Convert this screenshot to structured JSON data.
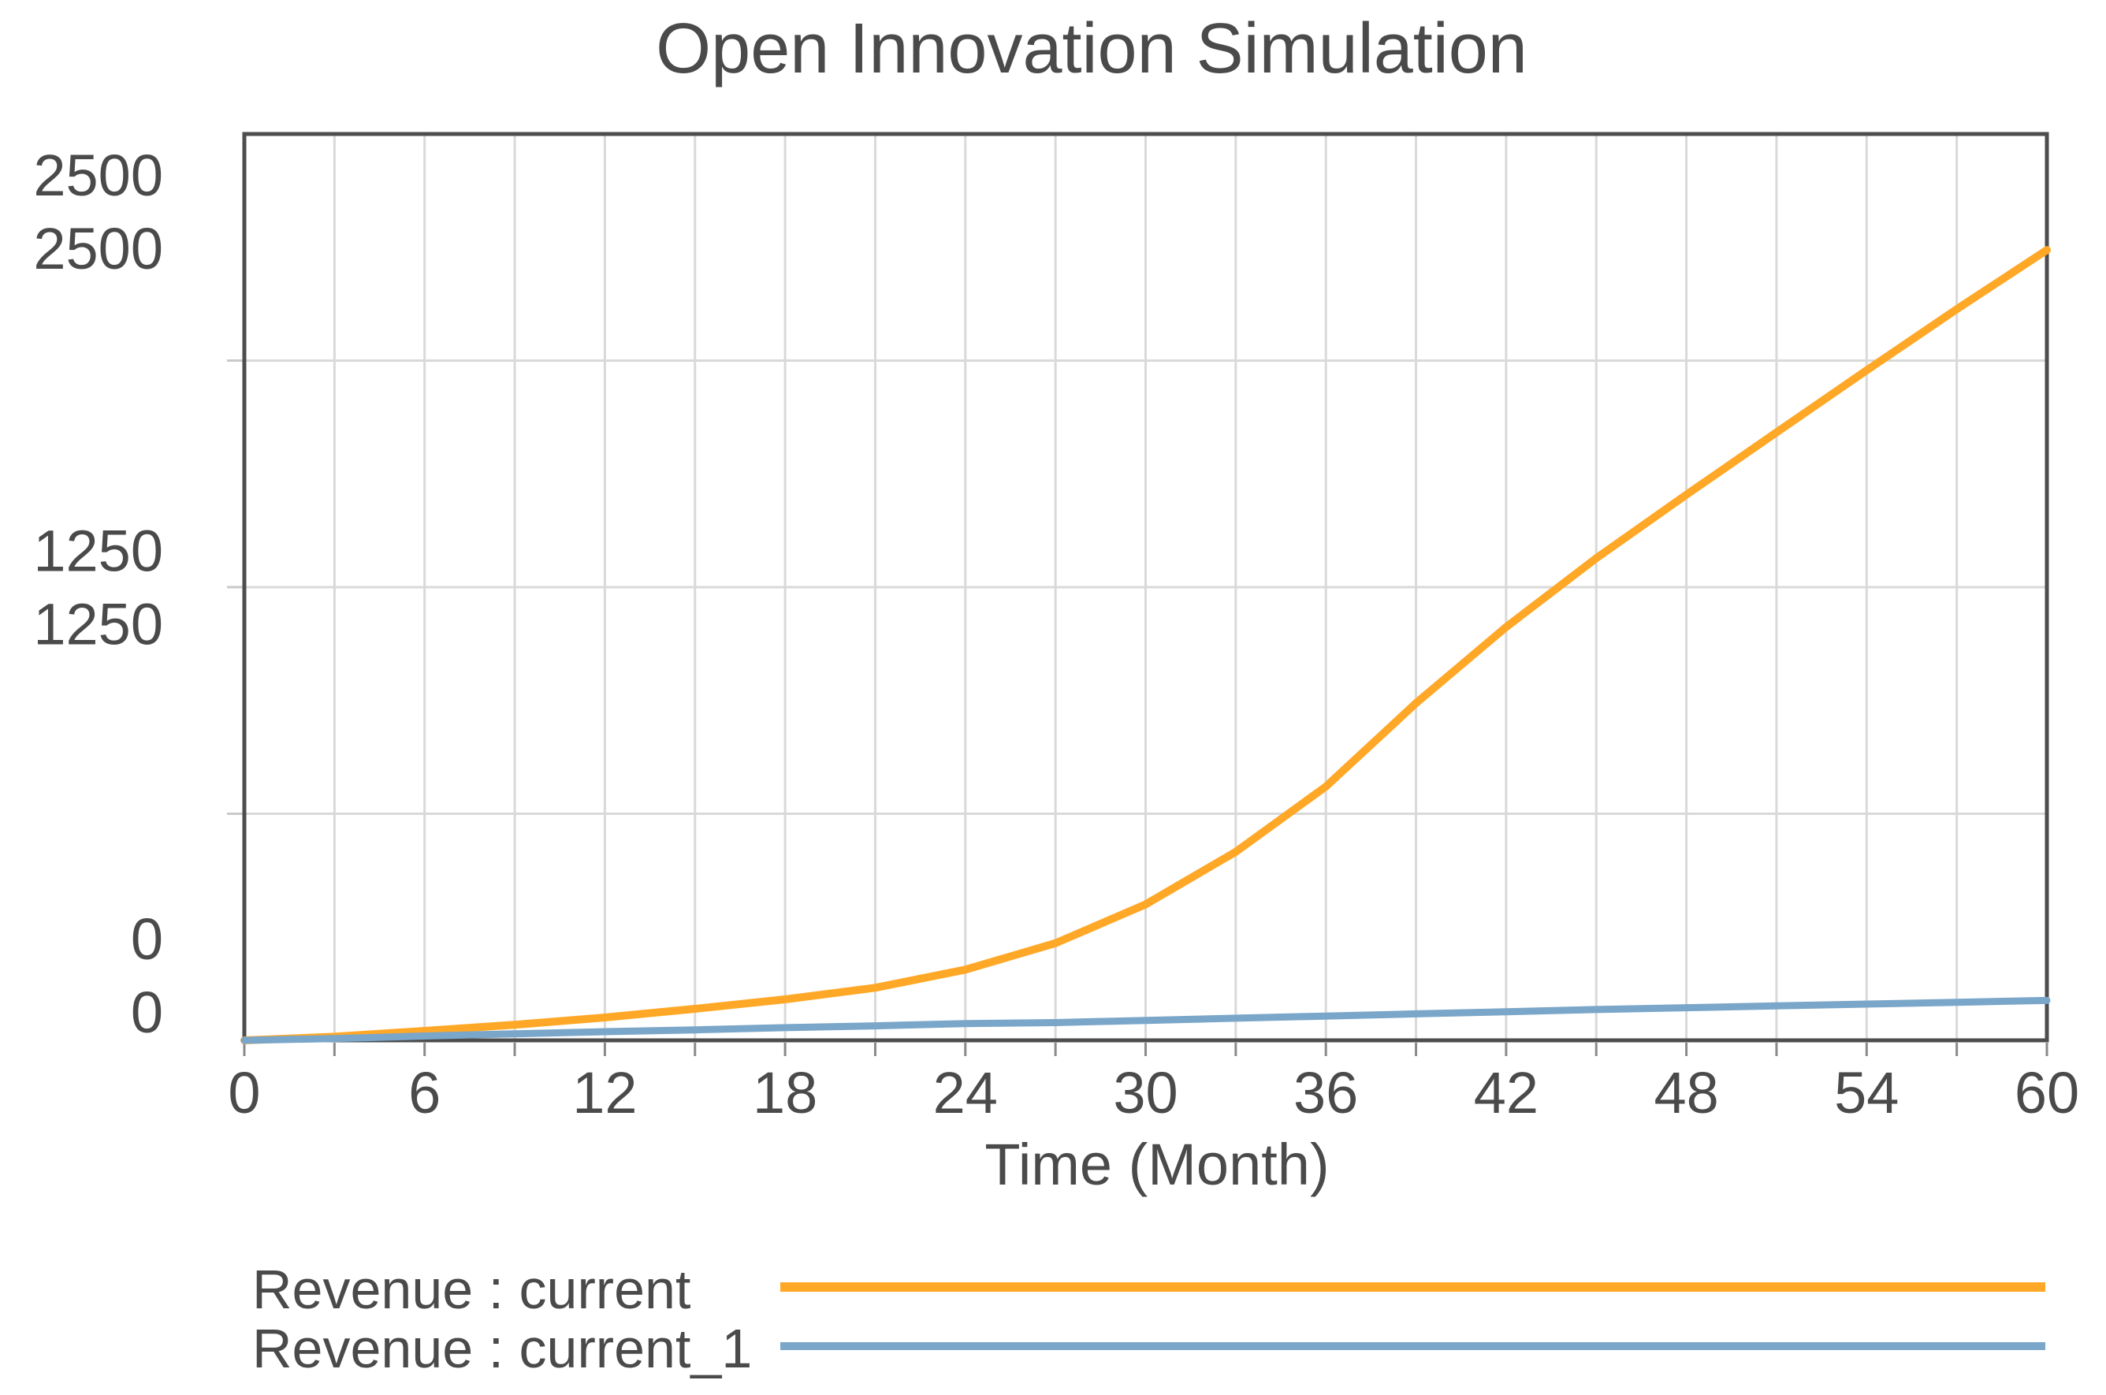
{
  "title": "Open Innovation Simulation",
  "colors": {
    "series1": "#FFA827",
    "series2": "#7AA6C9",
    "grid": "#D9D9D9",
    "border": "#4D4D4D",
    "text": "#4A4A4A",
    "axis_tick": "#8A8A8A",
    "left_tick": "#C9C9C9",
    "background": "#FFFFFF"
  },
  "legend": {
    "items": [
      {
        "label": "Revenue : current",
        "color": "#FFA827"
      },
      {
        "label": "Revenue : current_1",
        "color": "#7AA6C9"
      }
    ]
  },
  "chart_data": {
    "type": "line",
    "title": "Open Innovation Simulation",
    "xlabel": "Time (Month)",
    "xlim": [
      0,
      60
    ],
    "ylim": [
      0,
      2500
    ],
    "x_ticks": [
      0,
      6,
      12,
      18,
      24,
      30,
      36,
      42,
      48,
      54,
      60
    ],
    "y_ticks": [
      0,
      1250,
      2500
    ],
    "y_tick_labels_per_series": [
      [
        "0",
        "1250",
        "2500"
      ],
      [
        "0",
        "1250",
        "2500"
      ]
    ],
    "grid": true,
    "x_grid_step": 3,
    "y_grid_values": [
      625,
      1250,
      1875
    ],
    "legend_position": "bottom-left",
    "x": [
      0,
      3,
      6,
      9,
      12,
      15,
      18,
      21,
      24,
      27,
      30,
      33,
      36,
      39,
      42,
      45,
      48,
      51,
      54,
      57,
      60
    ],
    "series": [
      {
        "name": "Revenue : current",
        "color": "#FFA827",
        "values": [
          0,
          10,
          26,
          43,
          63,
          87,
          113,
          145,
          195,
          268,
          375,
          520,
          700,
          930,
          1140,
          1330,
          1505,
          1677,
          1848,
          2017,
          2180
        ]
      },
      {
        "name": "Revenue : current_1",
        "color": "#7AA6C9",
        "values": [
          0,
          5,
          12,
          18,
          24,
          29,
          35,
          40,
          46,
          49,
          55,
          61,
          67,
          73,
          79,
          85,
          90,
          95,
          100,
          105,
          110
        ]
      }
    ]
  }
}
